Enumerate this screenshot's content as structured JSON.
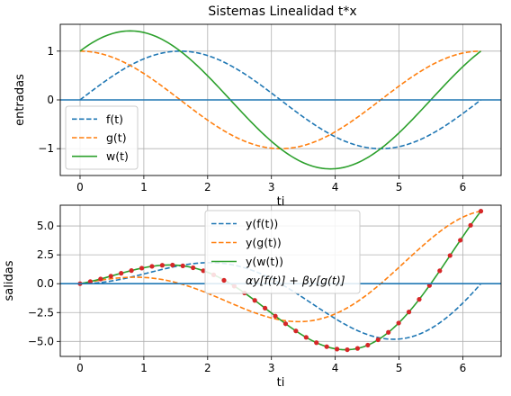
{
  "figure": {
    "title": "Sistemas Linealidad t*x"
  },
  "chart_data": [
    {
      "type": "line",
      "title": "Sistemas Linealidad t*x",
      "xlabel": "ti",
      "ylabel": "entradas",
      "xlim": [
        -0.31,
        6.6
      ],
      "ylim": [
        -1.55,
        1.55
      ],
      "xticks": [
        0,
        1,
        2,
        3,
        4,
        5,
        6
      ],
      "yticks": [
        -1,
        0,
        1
      ],
      "grid": true,
      "legend": "lower-left",
      "t_range": [
        0,
        6.283
      ],
      "zero_line": true,
      "series": [
        {
          "name": "f(t)",
          "formula": "sin(t)",
          "color": "#1f77b4",
          "style": "dashed"
        },
        {
          "name": "g(t)",
          "formula": "cos(t)",
          "color": "#ff7f0e",
          "style": "dashed"
        },
        {
          "name": "w(t)",
          "formula": "sin(t)+cos(t)",
          "color": "#2ca02c",
          "style": "solid"
        }
      ]
    },
    {
      "type": "line",
      "title": "",
      "xlabel": "ti",
      "ylabel": "salidas",
      "xlim": [
        -0.31,
        6.6
      ],
      "ylim": [
        -6.3,
        6.8
      ],
      "xticks": [
        0,
        1,
        2,
        3,
        4,
        5,
        6
      ],
      "yticks": [
        -5.0,
        -2.5,
        0.0,
        2.5,
        5.0
      ],
      "grid": true,
      "legend": "top-center",
      "t_range": [
        0,
        6.283
      ],
      "zero_line": true,
      "series": [
        {
          "name": "y(f(t))",
          "formula": "t*sin(t)",
          "color": "#1f77b4",
          "style": "dashed"
        },
        {
          "name": "y(g(t))",
          "formula": "t*cos(t)",
          "color": "#ff7f0e",
          "style": "dashed"
        },
        {
          "name": "y(w(t))",
          "formula": "t*(sin(t)+cos(t))",
          "color": "#2ca02c",
          "style": "solid"
        },
        {
          "name": "αy[f(t)] + βy[g(t)]",
          "formula": "t*sin(t)+t*cos(t)",
          "color": "#d62728",
          "style": "dots"
        }
      ]
    }
  ],
  "colors": {
    "zero_line": "#1f77b4",
    "grid": "#b0b0b0",
    "axes": "#000000"
  }
}
